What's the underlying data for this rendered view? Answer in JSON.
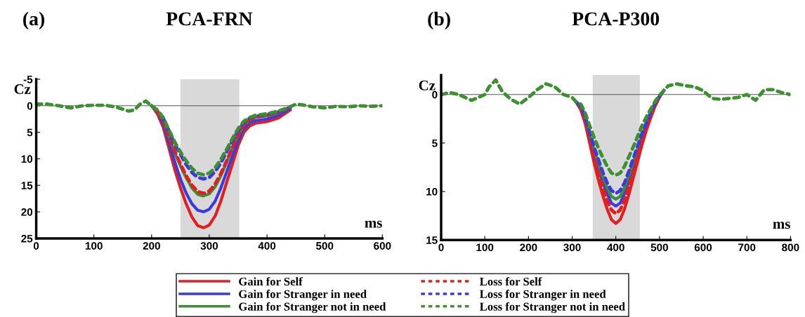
{
  "chart_data": [
    {
      "type": "line",
      "title": "PCA-FRN",
      "annotations": [
        "(a)"
      ],
      "xlabel": "ms",
      "ylabel": "Cz",
      "x": [
        0,
        20,
        40,
        60,
        80,
        100,
        120,
        140,
        160,
        170,
        180,
        190,
        200,
        210,
        220,
        230,
        240,
        250,
        260,
        270,
        280,
        290,
        300,
        310,
        320,
        330,
        340,
        350,
        360,
        370,
        380,
        400,
        420,
        440,
        450,
        460,
        480,
        500,
        520,
        540,
        560,
        580,
        600
      ],
      "xlim": [
        0,
        600
      ],
      "xticks": [
        0,
        100,
        200,
        300,
        400,
        500,
        600
      ],
      "ylim": [
        25,
        -5
      ],
      "yticks": [
        -5,
        0,
        5,
        10,
        15,
        20,
        25
      ],
      "ref_lines": [
        {
          "axis": "y",
          "value": 0,
          "color": "#555555"
        }
      ],
      "bands": [
        {
          "axis": "x",
          "from": 250,
          "to": 352,
          "color": "#d9d9d9"
        }
      ],
      "legend": "bottom",
      "grid": false,
      "series": [
        {
          "name": "Gain for Self",
          "color": "#e02020",
          "line_style": "solid",
          "values": [
            null,
            null,
            null,
            null,
            null,
            null,
            null,
            null,
            null,
            null,
            null,
            null,
            0,
            1.5,
            4,
            8,
            12,
            15.5,
            18.5,
            21,
            22.6,
            23,
            22.5,
            20.8,
            18,
            14.5,
            11,
            7.5,
            5,
            3.8,
            3.3,
            3,
            2.3,
            0.8,
            null,
            null,
            null,
            null,
            null,
            null,
            null,
            null,
            null
          ]
        },
        {
          "name": "Gain for Stranger in need",
          "color": "#3a3ae0",
          "line_style": "solid",
          "values": [
            null,
            null,
            null,
            null,
            null,
            null,
            null,
            null,
            null,
            null,
            null,
            null,
            0,
            1.2,
            3.3,
            6.8,
            10.5,
            13.8,
            16.5,
            18.5,
            19.7,
            20,
            19.5,
            18,
            15.5,
            12.5,
            9.5,
            6.5,
            4.3,
            3.2,
            2.8,
            2.5,
            1.8,
            0.5,
            null,
            null,
            null,
            null,
            null,
            null,
            null,
            null,
            null
          ]
        },
        {
          "name": "Gain for Stranger not in need",
          "color": "#3c9030",
          "line_style": "solid",
          "values": [
            null,
            null,
            null,
            null,
            null,
            null,
            null,
            null,
            null,
            null,
            null,
            null,
            0,
            1,
            2.8,
            5.8,
            8.8,
            11.4,
            13.6,
            15.5,
            16.7,
            17,
            16.6,
            15.3,
            13.2,
            10.7,
            8,
            5.6,
            3.7,
            2.7,
            2.2,
            1.9,
            1.3,
            0.3,
            null,
            null,
            null,
            null,
            null,
            null,
            null,
            null,
            null
          ]
        },
        {
          "name": "Loss for Self",
          "color": "#e02020",
          "line_style": "dashed",
          "values": [
            null,
            null,
            null,
            null,
            null,
            null,
            null,
            null,
            null,
            null,
            null,
            null,
            null,
            1,
            2.7,
            5.6,
            8.5,
            11,
            13.2,
            15,
            16.2,
            16.5,
            16.1,
            14.8,
            12.8,
            10.4,
            7.9,
            5.4,
            3.6,
            2.6,
            2.1,
            1.8,
            1.2,
            0.3,
            null,
            null,
            null,
            null,
            null,
            null,
            null,
            null,
            null
          ]
        },
        {
          "name": "Loss for Stranger in need",
          "color": "#3a3ae0",
          "line_style": "dashed",
          "values": [
            null,
            null,
            null,
            null,
            null,
            null,
            null,
            null,
            null,
            null,
            null,
            null,
            null,
            null,
            2.3,
            4.7,
            7.2,
            9.2,
            11.1,
            12.6,
            13.5,
            13.8,
            13.5,
            12.4,
            10.8,
            8.7,
            6.6,
            4.6,
            3.1,
            2.3,
            1.9,
            1.6,
            1.1,
            0.3,
            null,
            null,
            null,
            null,
            null,
            null,
            null,
            null,
            null
          ]
        },
        {
          "name": "Loss for Stranger not in need",
          "color": "#3c9030",
          "line_style": "dashed",
          "values": [
            -0.3,
            -0.3,
            0,
            0.4,
            0,
            -0.1,
            -0.1,
            0.3,
            1,
            0.8,
            -0.3,
            -0.9,
            0,
            0.8,
            2.2,
            4.5,
            6.8,
            8.7,
            10.4,
            11.8,
            12.7,
            13,
            12.7,
            11.7,
            10.1,
            8.2,
            6.2,
            4.3,
            2.9,
            2.2,
            1.8,
            1.5,
            1,
            0.2,
            -0.3,
            -0.2,
            0.2,
            0.4,
            0.1,
            0.2,
            0,
            0.1,
            0
          ]
        }
      ]
    },
    {
      "type": "line",
      "title": "PCA-P300",
      "annotations": [
        "(b)"
      ],
      "xlabel": "ms",
      "ylabel": "Cz",
      "x": [
        0,
        20,
        40,
        60,
        70,
        80,
        100,
        110,
        125,
        140,
        160,
        180,
        200,
        220,
        240,
        260,
        280,
        300,
        310,
        320,
        330,
        340,
        350,
        360,
        370,
        380,
        390,
        400,
        410,
        420,
        430,
        440,
        450,
        460,
        470,
        480,
        490,
        500,
        510,
        520,
        540,
        560,
        580,
        600,
        620,
        640,
        660,
        680,
        700,
        710,
        720,
        740,
        760,
        780,
        800
      ],
      "xlim": [
        0,
        800
      ],
      "xticks": [
        0,
        100,
        200,
        300,
        400,
        500,
        600,
        700,
        800
      ],
      "ylim": [
        15,
        -2
      ],
      "yticks": [
        0,
        5,
        10,
        15
      ],
      "ref_lines": [
        {
          "axis": "y",
          "value": 0,
          "color": "#555555"
        }
      ],
      "bands": [
        {
          "axis": "x",
          "from": 347,
          "to": 455,
          "color": "#d9d9d9"
        }
      ],
      "grid": false,
      "series": [
        {
          "color": "#e02020",
          "line_style": "solid",
          "values": [
            null,
            null,
            null,
            null,
            null,
            null,
            null,
            null,
            null,
            null,
            null,
            null,
            null,
            null,
            null,
            null,
            null,
            null,
            0.8,
            1.6,
            3,
            5,
            7,
            8.8,
            10.4,
            11.8,
            12.9,
            13.3,
            12.9,
            11.8,
            10.3,
            8.6,
            6.9,
            5.2,
            3.7,
            2.4,
            1.2,
            0.3,
            -0.4,
            null,
            null,
            null,
            null,
            null,
            null,
            null,
            null,
            null,
            null,
            null,
            null,
            null,
            null,
            null,
            null
          ]
        },
        {
          "color": "#3a3ae0",
          "line_style": "solid",
          "values": [
            null,
            null,
            null,
            null,
            null,
            null,
            null,
            null,
            null,
            null,
            null,
            null,
            null,
            null,
            null,
            null,
            null,
            null,
            0.8,
            1.4,
            2.6,
            4.4,
            6.1,
            7.6,
            9,
            10.2,
            11.2,
            11.5,
            11.2,
            10.2,
            8.9,
            7.5,
            6,
            4.5,
            3.2,
            2.1,
            1,
            0.2,
            -0.4,
            null,
            null,
            null,
            null,
            null,
            null,
            null,
            null,
            null,
            null,
            null,
            null,
            null,
            null,
            null,
            null
          ]
        },
        {
          "color": "#3c9030",
          "line_style": "solid",
          "values": [
            null,
            null,
            null,
            null,
            null,
            null,
            null,
            null,
            null,
            null,
            null,
            null,
            null,
            null,
            null,
            null,
            null,
            null,
            0.8,
            1.3,
            2.5,
            4.1,
            5.7,
            7.1,
            8.4,
            9.6,
            10.5,
            10.8,
            10.5,
            9.6,
            8.3,
            7,
            5.6,
            4.2,
            3,
            1.9,
            1,
            0.2,
            -0.4,
            null,
            null,
            null,
            null,
            null,
            null,
            null,
            null,
            null,
            null,
            null,
            null,
            null,
            null,
            null,
            null
          ]
        },
        {
          "color": "#e02020",
          "line_style": "dashed",
          "values": [
            null,
            null,
            null,
            null,
            null,
            null,
            null,
            null,
            null,
            null,
            null,
            null,
            null,
            null,
            null,
            null,
            null,
            null,
            0.8,
            1.5,
            2.8,
            4.7,
            6.5,
            8.1,
            9.6,
            10.9,
            11.9,
            12.3,
            11.9,
            10.9,
            9.5,
            8,
            6.4,
            4.8,
            3.4,
            2.2,
            1.1,
            0.2,
            null,
            null,
            null,
            null,
            null,
            null,
            null,
            null,
            null,
            null,
            null,
            null,
            null,
            null,
            null,
            null,
            null
          ]
        },
        {
          "color": "#3a3ae0",
          "line_style": "dashed",
          "values": [
            null,
            null,
            null,
            null,
            null,
            null,
            null,
            null,
            null,
            null,
            null,
            null,
            null,
            null,
            null,
            null,
            null,
            null,
            0.8,
            1.2,
            2.3,
            3.9,
            5.4,
            6.7,
            8,
            9.1,
            9.9,
            10.2,
            9.9,
            9.1,
            7.9,
            6.6,
            5.3,
            4,
            2.9,
            1.8,
            0.9,
            0.2,
            null,
            null,
            null,
            null,
            null,
            null,
            null,
            null,
            null,
            null,
            null,
            null,
            null,
            null,
            null,
            null,
            null
          ]
        },
        {
          "color": "#3c9030",
          "line_style": "dashed",
          "values": [
            0,
            -0.2,
            0,
            0.4,
            0.6,
            0.4,
            0,
            -0.8,
            -1.5,
            -0.3,
            0.5,
            1,
            0.3,
            -0.5,
            -1.1,
            -0.8,
            0,
            0.3,
            0.8,
            1,
            1.9,
            3.2,
            4.4,
            5.5,
            6.5,
            7.4,
            8.1,
            8.3,
            8.1,
            7.4,
            6.4,
            5.4,
            4.3,
            3.2,
            2.3,
            1.5,
            0.7,
            0.1,
            -0.4,
            -0.9,
            -1.1,
            -0.9,
            -0.8,
            -0.4,
            0.4,
            0.5,
            0.4,
            0.3,
            0,
            0.3,
            0.6,
            -0.5,
            -0.5,
            -0.2,
            0
          ]
        }
      ]
    }
  ]
}
